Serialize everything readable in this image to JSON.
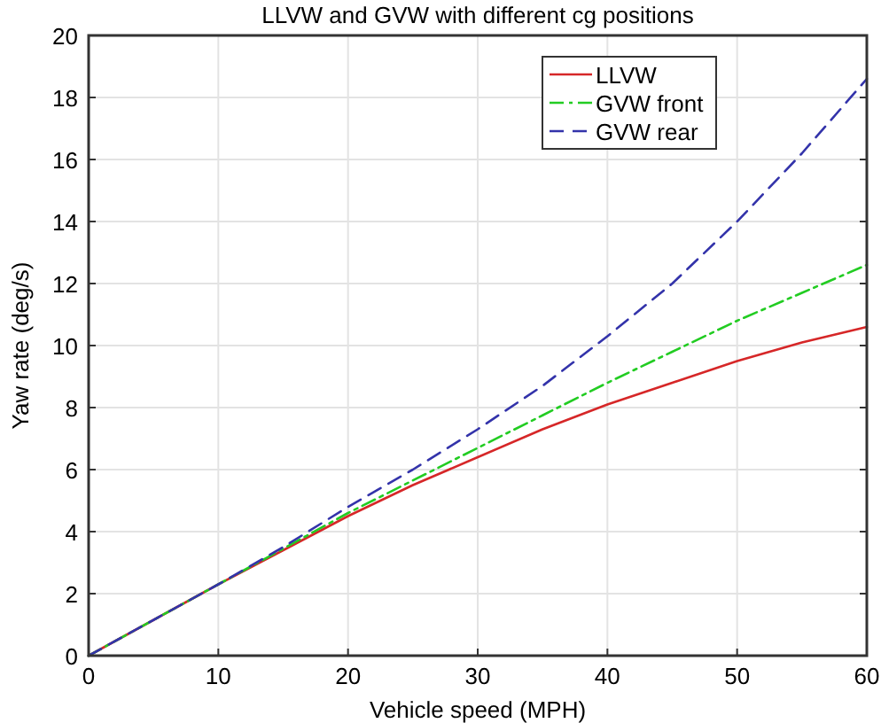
{
  "chart_data": {
    "type": "line",
    "title": "LLVW and GVW with different cg positions",
    "xlabel": "Vehicle speed (MPH)",
    "ylabel": "Yaw rate (deg/s)",
    "x": [
      0,
      5,
      10,
      15,
      20,
      25,
      30,
      35,
      40,
      45,
      50,
      55,
      60
    ],
    "series": [
      {
        "name": "LLVW",
        "color": "#d62728",
        "line_style": "solid",
        "values": [
          0,
          1.15,
          2.3,
          3.4,
          4.5,
          5.5,
          6.4,
          7.3,
          8.1,
          8.8,
          9.5,
          10.1,
          10.6
        ]
      },
      {
        "name": "GVW front",
        "color": "#22cc22",
        "line_style": "dashdot",
        "values": [
          0,
          1.15,
          2.3,
          3.45,
          4.6,
          5.65,
          6.7,
          7.75,
          8.8,
          9.8,
          10.8,
          11.7,
          12.6
        ]
      },
      {
        "name": "GVW rear",
        "color": "#3333aa",
        "line_style": "dashed",
        "values": [
          0,
          1.15,
          2.3,
          3.5,
          4.8,
          6.0,
          7.3,
          8.7,
          10.3,
          12.0,
          14.0,
          16.2,
          18.6
        ]
      }
    ],
    "xlim": [
      0,
      60
    ],
    "xticks": [
      0,
      10,
      20,
      30,
      40,
      50,
      60
    ],
    "ylim": [
      0,
      20
    ],
    "yticks": [
      0,
      2,
      4,
      6,
      8,
      10,
      12,
      14,
      16,
      18,
      20
    ],
    "grid": true,
    "legend": "top right",
    "marker": "none"
  }
}
